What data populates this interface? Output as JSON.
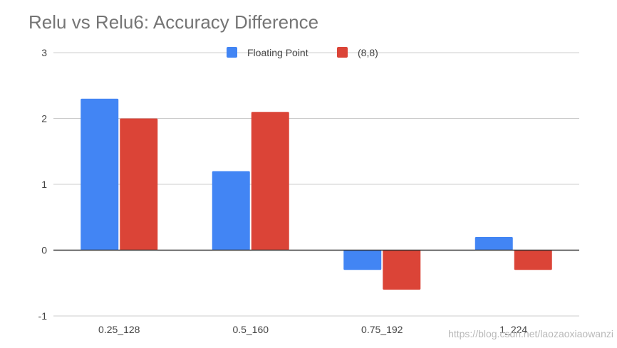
{
  "chart_data": {
    "type": "bar",
    "title": "Relu vs Relu6: Accuracy Difference",
    "categories": [
      "0.25_128",
      "0.5_160",
      "0.75_192",
      "1_224"
    ],
    "series": [
      {
        "name": "Floating Point",
        "color": "#4285f4",
        "values": [
          2.3,
          1.2,
          -0.3,
          0.2
        ]
      },
      {
        "name": "(8,8)",
        "color": "#db4437",
        "values": [
          2.0,
          2.1,
          -0.6,
          -0.3
        ]
      }
    ],
    "ylim": [
      -1,
      3
    ],
    "yticks": [
      "3",
      "2",
      "1",
      "0",
      "-1"
    ],
    "legend_position": "top-center",
    "grid": true
  },
  "watermark": "https://blog.csdn.net/laozaoxiaowanzi"
}
